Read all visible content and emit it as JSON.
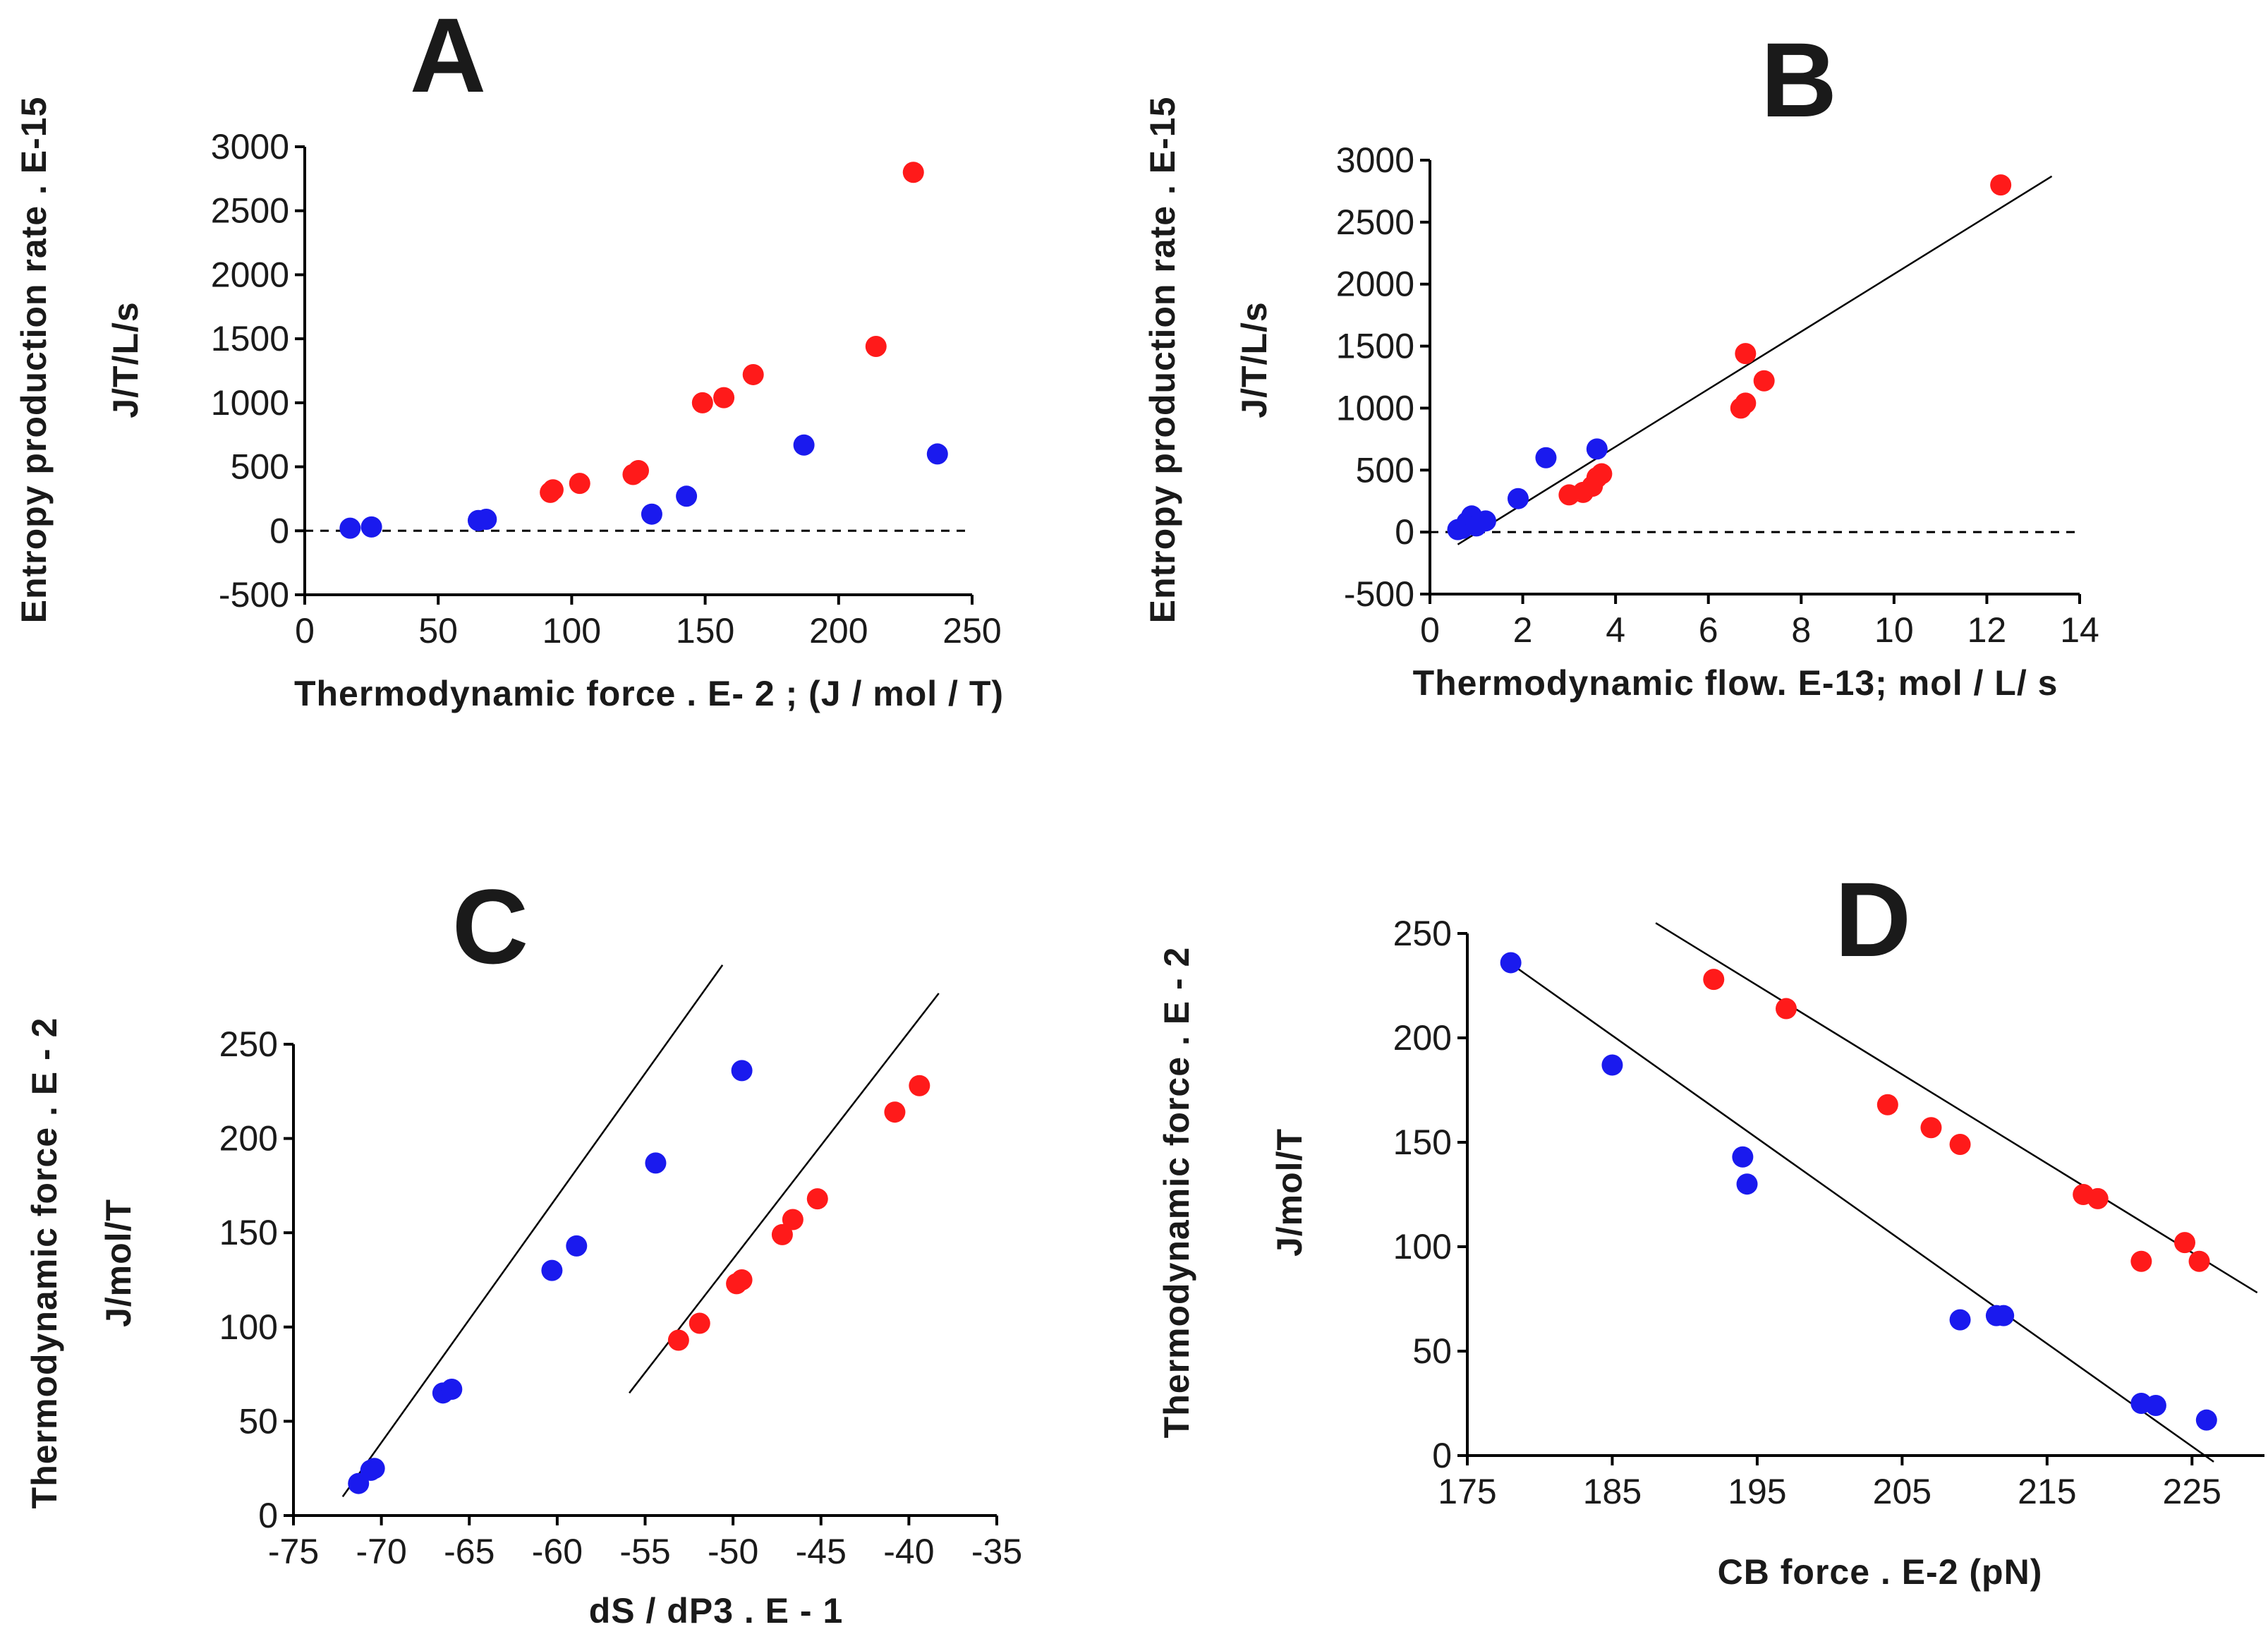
{
  "colors": {
    "red": "#ff1a1a",
    "blue": "#1a1aee"
  },
  "chart_data": [
    {
      "id": "A",
      "type": "scatter",
      "letter": "A",
      "xlabel": "Thermodynamic force . E- 2 ; (J / mol / T)",
      "ylabel_main": "Entropy production rate . E-15",
      "ylabel_unit": "J/T/L/s",
      "xlim": [
        0,
        250
      ],
      "ylim": [
        -500,
        3000
      ],
      "xticks": [
        "0",
        "50",
        "100",
        "150",
        "200",
        "250"
      ],
      "yticks": [
        "-500",
        "0",
        "500",
        "1000",
        "1500",
        "2000",
        "2500",
        "3000"
      ],
      "zero_line": true,
      "series": [
        {
          "name": "red",
          "color": "red",
          "x": [
            92,
            93,
            103,
            123,
            125,
            149,
            157,
            168,
            214,
            228
          ],
          "y": [
            300,
            320,
            370,
            440,
            470,
            1000,
            1040,
            1220,
            1440,
            2800
          ]
        },
        {
          "name": "blue",
          "color": "blue",
          "x": [
            17,
            25,
            65,
            68,
            130,
            143,
            187,
            237
          ],
          "y": [
            20,
            30,
            80,
            90,
            130,
            270,
            670,
            600
          ]
        }
      ],
      "fit_lines": []
    },
    {
      "id": "B",
      "type": "scatter",
      "letter": "B",
      "xlabel": "Thermodynamic flow. E-13; mol / L/ s",
      "ylabel_main": "Entropy production rate . E-15",
      "ylabel_unit": "J/T/L/s",
      "xlim": [
        0,
        14
      ],
      "ylim": [
        -500,
        3000
      ],
      "xticks": [
        "0",
        "2",
        "4",
        "6",
        "8",
        "10",
        "12",
        "14"
      ],
      "yticks": [
        "-500",
        "0",
        "500",
        "1000",
        "1500",
        "2000",
        "2500",
        "3000"
      ],
      "zero_line": true,
      "series": [
        {
          "name": "red",
          "color": "red",
          "x": [
            3.0,
            3.3,
            3.5,
            3.6,
            3.7,
            6.7,
            6.8,
            6.8,
            7.2,
            12.3
          ],
          "y": [
            300,
            320,
            370,
            440,
            470,
            1000,
            1040,
            1440,
            1220,
            2800
          ]
        },
        {
          "name": "blue",
          "color": "blue",
          "x": [
            0.6,
            0.7,
            0.8,
            0.9,
            1.0,
            1.2,
            1.9,
            2.5,
            3.6
          ],
          "y": [
            20,
            30,
            80,
            130,
            50,
            90,
            270,
            600,
            670
          ]
        }
      ],
      "fit_lines": [
        {
          "x": [
            0.6,
            13.4
          ],
          "y": [
            -100,
            2870
          ]
        }
      ]
    },
    {
      "id": "C",
      "type": "scatter",
      "letter": "C",
      "xlabel": "dS / dP3 . E - 1",
      "ylabel_main": "Thermodynamic force . E - 2",
      "ylabel_unit": "J/mol/T",
      "xlim": [
        -75,
        -35
      ],
      "ylim": [
        0,
        250
      ],
      "xticks": [
        "-75",
        "-70",
        "-65",
        "-60",
        "-55",
        "-50",
        "-45",
        "-40",
        "-35"
      ],
      "yticks": [
        "0",
        "50",
        "100",
        "150",
        "200",
        "250"
      ],
      "zero_line": false,
      "series": [
        {
          "name": "blue",
          "color": "blue",
          "x": [
            -71.3,
            -70.6,
            -70.4,
            -66.5,
            -66.0,
            -60.3,
            -58.9,
            -54.4,
            -49.5
          ],
          "y": [
            17,
            24,
            25,
            65,
            67,
            130,
            143,
            187,
            236
          ]
        },
        {
          "name": "red",
          "color": "red",
          "x": [
            -53.1,
            -51.9,
            -49.8,
            -49.5,
            -47.2,
            -46.6,
            -45.2,
            -40.8,
            -39.4
          ],
          "y": [
            93,
            102,
            123,
            125,
            149,
            157,
            168,
            214,
            228
          ]
        }
      ],
      "fit_lines": [
        {
          "x": [
            -72.2,
            -50.6
          ],
          "y": [
            10,
            292
          ]
        },
        {
          "x": [
            -55.9,
            -38.3
          ],
          "y": [
            65,
            277
          ]
        }
      ]
    },
    {
      "id": "D",
      "type": "scatter",
      "letter": "D",
      "xlabel": "CB force . E-2 (pN)",
      "ylabel_main": "Thermodynamic force . E - 2",
      "ylabel_unit": "J/mol/T",
      "xlim": [
        175,
        230
      ],
      "ylim": [
        0,
        250
      ],
      "xticks": [
        "175",
        "185",
        "195",
        "205",
        "215",
        "225"
      ],
      "yticks": [
        "0",
        "50",
        "100",
        "150",
        "200",
        "250"
      ],
      "zero_line": false,
      "series": [
        {
          "name": "red",
          "color": "red",
          "x": [
            192,
            197,
            204,
            207,
            209,
            217.5,
            218.5,
            221.5,
            224.5,
            225.5
          ],
          "y": [
            228,
            214,
            168,
            157,
            149,
            125,
            123,
            93,
            102,
            93
          ]
        },
        {
          "name": "blue",
          "color": "blue",
          "x": [
            178,
            185,
            194,
            194.3,
            209,
            211.5,
            212,
            221.5,
            222.5,
            226
          ],
          "y": [
            236,
            187,
            143,
            130,
            65,
            67,
            67,
            25,
            24,
            17
          ]
        }
      ],
      "fit_lines": [
        {
          "x": [
            177.5,
            226.5
          ],
          "y": [
            238,
            -3
          ]
        },
        {
          "x": [
            188,
            229.5
          ],
          "y": [
            255,
            78
          ]
        }
      ]
    }
  ]
}
